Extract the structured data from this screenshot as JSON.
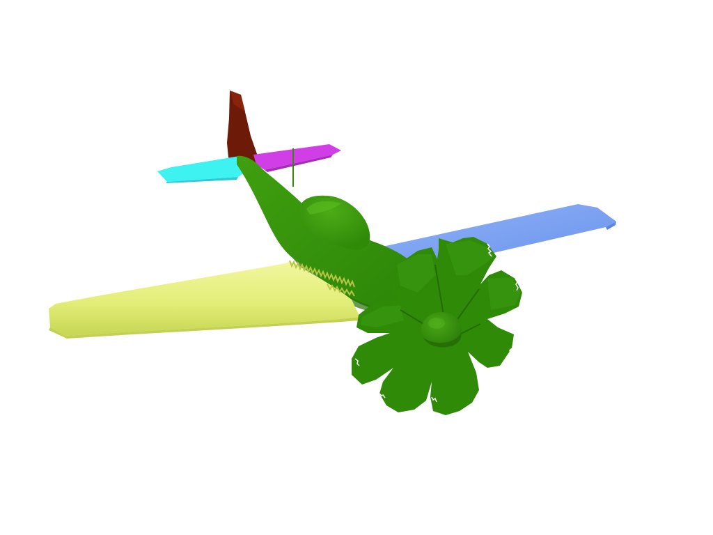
{
  "scene": {
    "background": "#ffffff",
    "model": "airplane",
    "parts": [
      {
        "name": "fuselage",
        "color": "#2e8b0a"
      },
      {
        "name": "propeller",
        "color": "#2e8b0a"
      },
      {
        "name": "left-wing",
        "color": "#e3f27a"
      },
      {
        "name": "right-wing",
        "color": "#7ea6f5"
      },
      {
        "name": "vertical-stabilizer",
        "color": "#6e1a0a"
      },
      {
        "name": "left-horizontal-stabilizer",
        "color": "#3ef2f2"
      },
      {
        "name": "right-horizontal-stabilizer",
        "color": "#d63ee6"
      }
    ]
  }
}
